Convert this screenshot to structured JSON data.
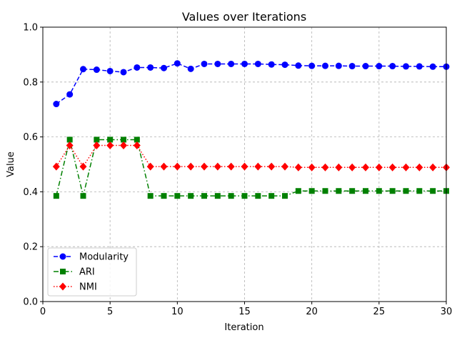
{
  "chart_data": {
    "type": "line",
    "title": "Values over Iterations",
    "xlabel": "Iteration",
    "ylabel": "Value",
    "xlim": [
      0,
      30
    ],
    "ylim": [
      0,
      1.0
    ],
    "xticks": [
      0,
      5,
      10,
      15,
      20,
      25,
      30
    ],
    "yticks": [
      0.0,
      0.2,
      0.4,
      0.6,
      0.8,
      1.0
    ],
    "ytick_labels": [
      "0.0",
      "0.2",
      "0.4",
      "0.6",
      "0.8",
      "1.0"
    ],
    "grid": true,
    "legend_position": "lower-left",
    "x": [
      1,
      2,
      3,
      4,
      5,
      6,
      7,
      8,
      9,
      10,
      11,
      12,
      13,
      14,
      15,
      16,
      17,
      18,
      19,
      20,
      21,
      22,
      23,
      24,
      25,
      26,
      27,
      28,
      29,
      30
    ],
    "series": [
      {
        "name": "Modularity",
        "color": "#0000ff",
        "marker": "circle",
        "linestyle": "dashed",
        "values": [
          0.72,
          0.755,
          0.847,
          0.845,
          0.84,
          0.836,
          0.853,
          0.853,
          0.851,
          0.868,
          0.848,
          0.866,
          0.866,
          0.866,
          0.866,
          0.866,
          0.864,
          0.863,
          0.86,
          0.859,
          0.859,
          0.859,
          0.858,
          0.858,
          0.858,
          0.858,
          0.857,
          0.857,
          0.856,
          0.856
        ]
      },
      {
        "name": "ARI",
        "color": "#008000",
        "marker": "square",
        "linestyle": "dashdot",
        "values": [
          0.385,
          0.59,
          0.385,
          0.59,
          0.59,
          0.59,
          0.59,
          0.385,
          0.385,
          0.385,
          0.385,
          0.385,
          0.385,
          0.385,
          0.385,
          0.385,
          0.385,
          0.385,
          0.403,
          0.403,
          0.403,
          0.403,
          0.403,
          0.403,
          0.403,
          0.403,
          0.403,
          0.403,
          0.403,
          0.403
        ]
      },
      {
        "name": "NMI",
        "color": "#ff0000",
        "marker": "diamond",
        "linestyle": "dotted",
        "values": [
          0.492,
          0.569,
          0.492,
          0.569,
          0.569,
          0.569,
          0.569,
          0.492,
          0.492,
          0.492,
          0.492,
          0.492,
          0.492,
          0.492,
          0.492,
          0.492,
          0.492,
          0.492,
          0.489,
          0.489,
          0.489,
          0.489,
          0.489,
          0.489,
          0.489,
          0.489,
          0.489,
          0.489,
          0.489,
          0.489
        ]
      }
    ]
  }
}
